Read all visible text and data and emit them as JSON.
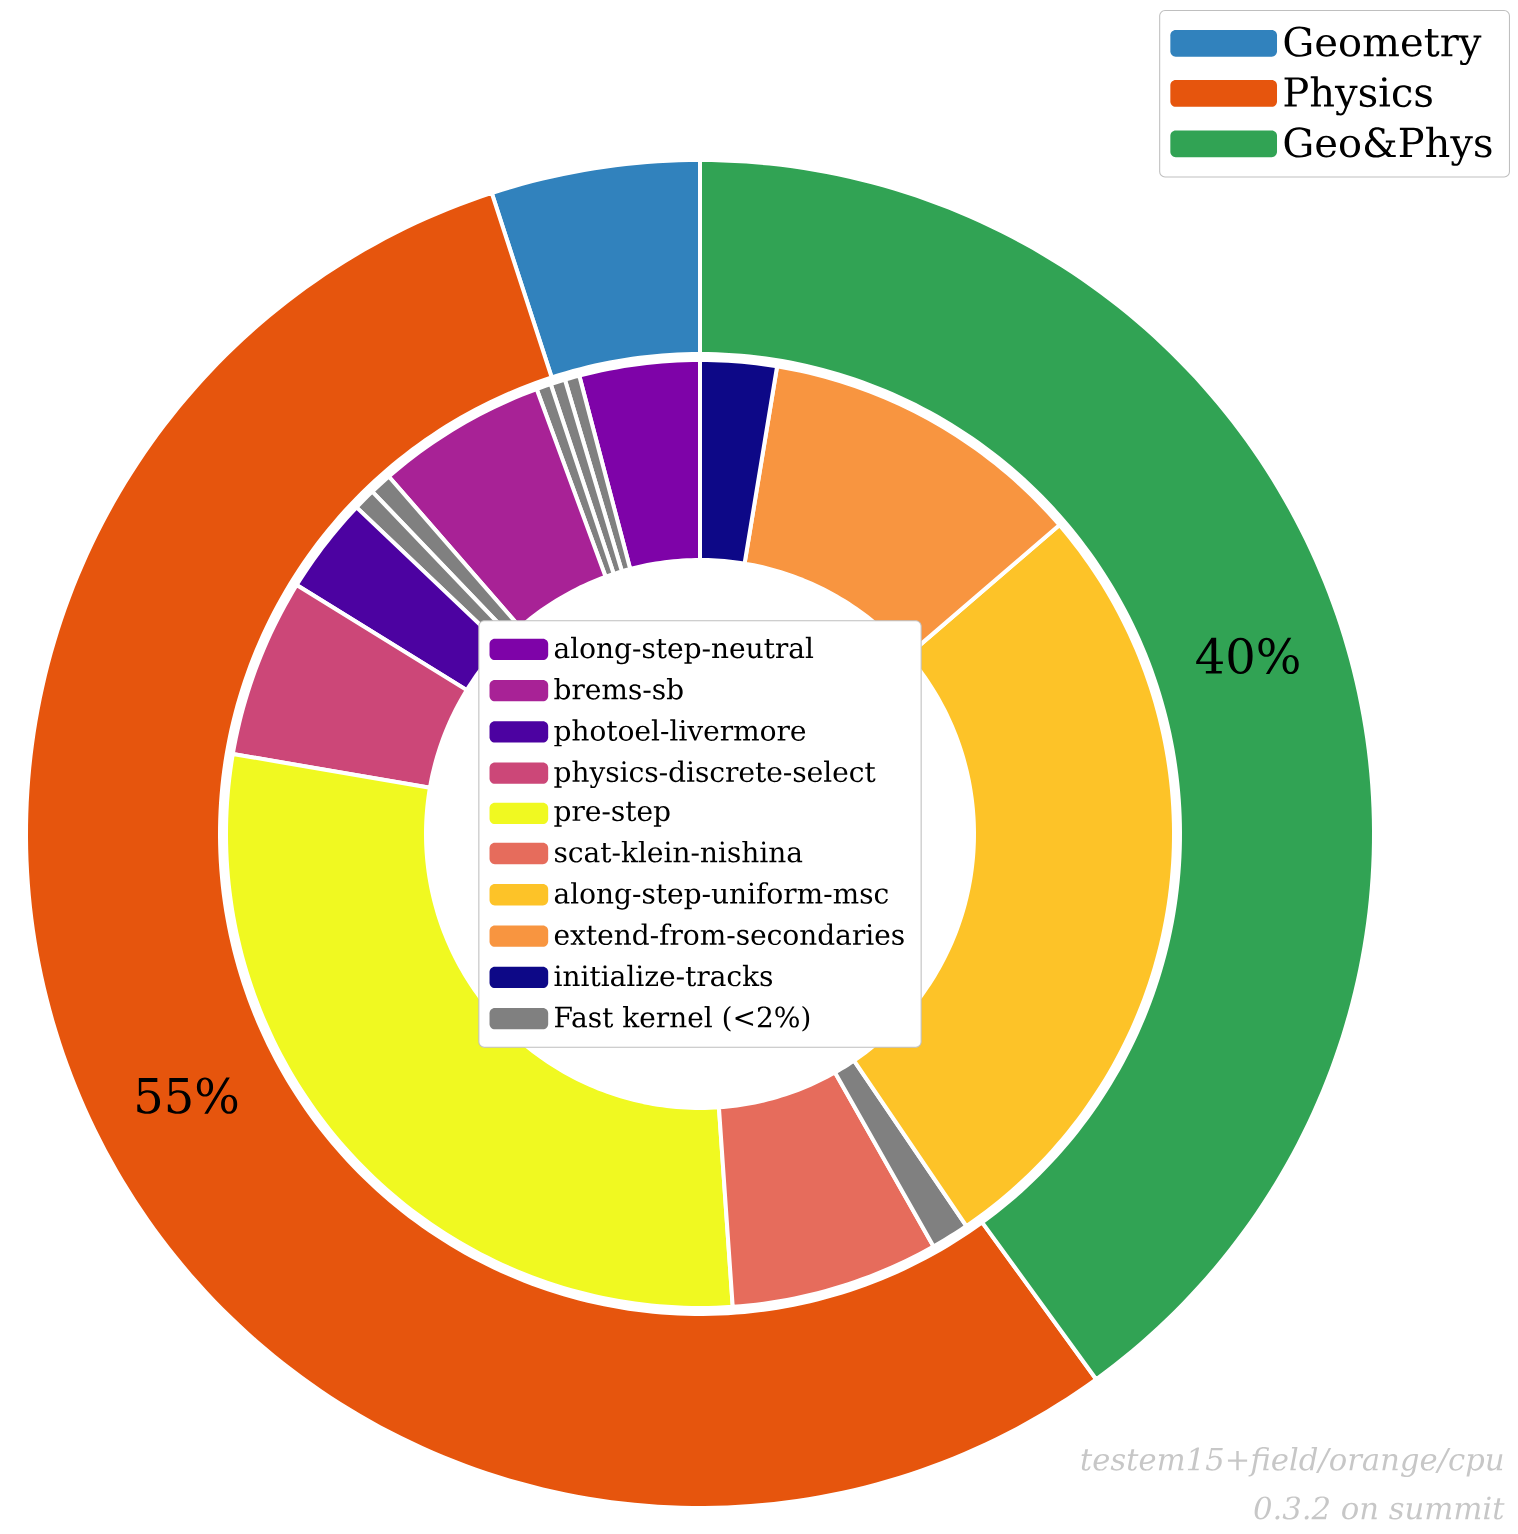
{
  "chart_data": [
    {
      "type": "donut",
      "categories": [
        "Geometry",
        "Physics",
        "Geo&Phys"
      ],
      "values": [
        5,
        55,
        40
      ],
      "colors": [
        "#3182bd",
        "#e6550d",
        "#31a354"
      ],
      "value_labels": [
        null,
        "55%",
        "40%"
      ],
      "legend": "top right",
      "annotations": [
        "testem15+field/orange/cpu",
        "0.3.2 on summit"
      ]
    },
    {
      "type": "donut",
      "categories": [
        "along-step-neutral",
        "Fast kernel (<2%)",
        null,
        null,
        "brems-sb",
        null,
        null,
        "photoel-livermore",
        "physics-discrete-select",
        "pre-step",
        "scat-klein-nishina",
        null,
        "along-step-uniform-msc",
        "extend-from-secondaries",
        "initialize-tracks"
      ],
      "values": [
        4.1,
        0.5,
        0.5,
        0.5,
        5.8,
        0.75,
        0.75,
        3.3,
        6.1,
        28.8,
        7.1,
        1.3,
        26.8,
        11.1,
        2.6
      ],
      "colors": [
        "#7e03a8",
        "#808080",
        "#808080",
        "#808080",
        "#a82296",
        "#808080",
        "#808080",
        "#4c02a1",
        "#cc4778",
        "#f0f921",
        "#e66c5c",
        "#808080",
        "#fdc328",
        "#f89540",
        "#0d0887"
      ],
      "legend": "center"
    }
  ]
}
